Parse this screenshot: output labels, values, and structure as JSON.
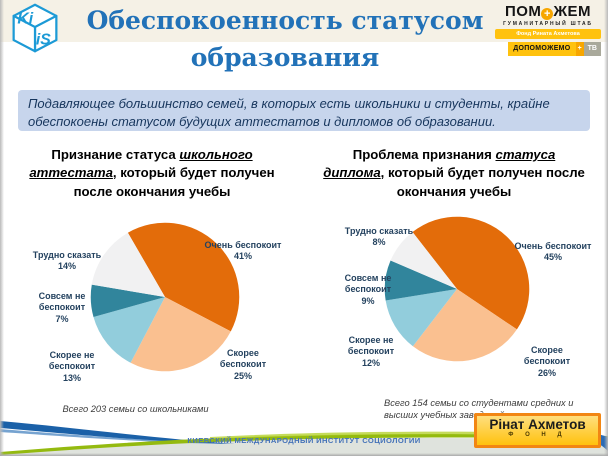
{
  "header": {
    "title_line1": "Обеспокоенность статусом",
    "title_line2": "образования",
    "kiis_logo_top": "Ki",
    "kiis_logo_bottom": "iS",
    "partner": {
      "wordmark_prefix": "ПОМ",
      "wordmark_plus": "+",
      "wordmark_suffix": "ЖЕМ",
      "tagline": "ГУМАНИТАРНЫЙ ШТАБ",
      "fund_line": "Фонд Рината Ахметова",
      "action_line": "ДОПОМОЖЕМО",
      "action_plus": "+",
      "tv_label": "ТВ"
    }
  },
  "lead_text": "Подавляющее большинство семей, в которых есть школьники и студенты, крайне обеспокоены статусом будущих аттестатов и дипломов об образовании.",
  "chart_data": [
    {
      "type": "pie",
      "title_prefix": "Признание статуса ",
      "title_emphasis": "школьного аттестата",
      "title_suffix": ", который будет получен после окончания учебы",
      "labels": [
        "Очень беспокоит",
        "Скорее беспокоит",
        "Скорее не беспокоит",
        "Совсем не беспокоит",
        "Трудно сказать"
      ],
      "values": [
        41,
        25,
        13,
        7,
        14
      ],
      "pct_labels": [
        "41%",
        "25%",
        "13%",
        "7%",
        "14%"
      ],
      "colors": [
        "#E36C0A",
        "#FAC090",
        "#92CDDC",
        "#31859C",
        "#F1F1F2"
      ],
      "start_angle_deg": 330,
      "label_style": "outside",
      "note": "Всего 203 семьи со школьниками"
    },
    {
      "type": "pie",
      "title_prefix": "Проблема признания ",
      "title_emphasis": "статуса диплома",
      "title_suffix": ", который будет получен после окончания учебы",
      "labels": [
        "Очень беспокоит",
        "Скорее беспокоит",
        "Скорее не беспокоит",
        "Совсем не беспокоит",
        "Трудно сказать"
      ],
      "values": [
        45,
        26,
        12,
        9,
        8
      ],
      "pct_labels": [
        "45%",
        "26%",
        "12%",
        "9%",
        "8%"
      ],
      "colors": [
        "#E36C0A",
        "#FAC090",
        "#92CDDC",
        "#31859C",
        "#F1F1F2"
      ],
      "start_angle_deg": 322,
      "label_style": "outside",
      "note": "Всего 154 семьи со студентами средних и высших учебных заведений"
    }
  ],
  "footer": {
    "institute": "КИЕВСКИЙ МЕЖДУНАРОДНЫЙ ИНСТИТУТ СОЦИОЛОГИИ",
    "fund_badge": {
      "name": "Рінат Ахметов",
      "sub": "Ф О Н Д"
    }
  },
  "colors": {
    "title_blue": "#2272B8",
    "lead_box_bg": "#C7D5EC",
    "lead_text": "#17365D",
    "pie_label_text": "#24425F",
    "badge_border_orange": "#F28613",
    "badge_yellow": "#FFC20E",
    "wave_green": "#94BA0F",
    "wave_blue": "#1B61A8",
    "header_band": "#F5F1E6"
  }
}
